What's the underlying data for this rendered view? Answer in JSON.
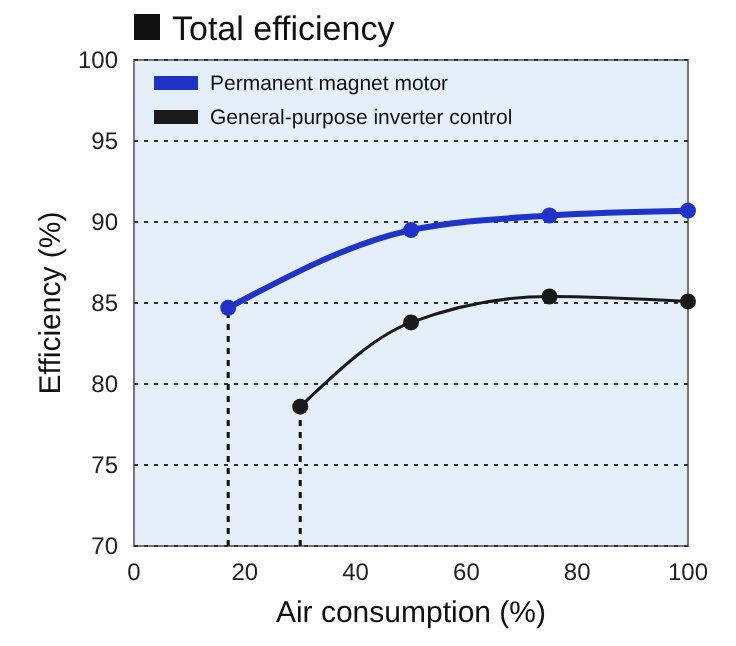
{
  "chart_data": {
    "type": "line",
    "title": "Total efficiency",
    "xlabel": "Air consumption (%)",
    "ylabel": "Efficiency (%)",
    "series": [
      {
        "name": "Permanent magnet motor",
        "color": "#1f33c8",
        "x": [
          17,
          50,
          75,
          100
        ],
        "values": [
          84.7,
          89.5,
          90.4,
          90.7
        ]
      },
      {
        "name": "General-purpose inverter control",
        "color": "#1a1a1a",
        "x": [
          30,
          50,
          75,
          100
        ],
        "values": [
          78.6,
          83.8,
          85.4,
          85.1
        ]
      }
    ],
    "xlim": [
      0,
      100
    ],
    "xticks": [
      0,
      20,
      40,
      60,
      80,
      100
    ],
    "ylim": [
      70,
      100
    ],
    "yticks": [
      70,
      75,
      80,
      85,
      90,
      95,
      100
    ],
    "grid": "y",
    "legend": "top left",
    "marker": "circle",
    "ref_lines": [
      {
        "axis": "x",
        "value": 17,
        "line_style": "dashed"
      },
      {
        "axis": "x",
        "value": 30,
        "line_style": "dashed"
      }
    ]
  }
}
